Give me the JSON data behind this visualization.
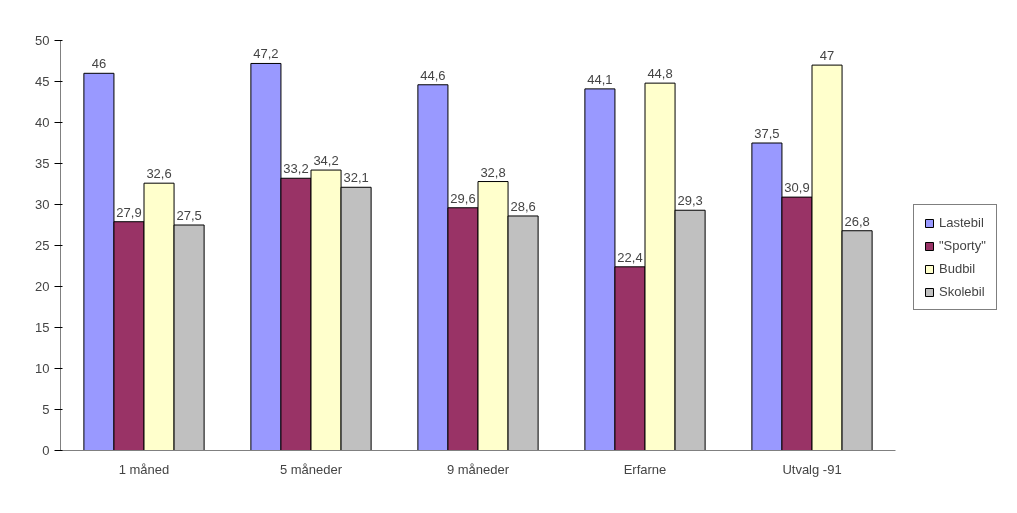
{
  "chart_data": {
    "type": "bar",
    "categories": [
      "1 måned",
      "5 måneder",
      "9 måneder",
      "Erfarne",
      "Utvalg -91"
    ],
    "series": [
      {
        "name": "Lastebil",
        "color": "#9999ff",
        "values": [
          46,
          47.2,
          44.6,
          44.1,
          37.5
        ],
        "value_labels": [
          "46",
          "47,2",
          "44,6",
          "44,1",
          "37,5"
        ]
      },
      {
        "name": "\"Sporty\"",
        "color": "#993366",
        "values": [
          27.9,
          33.2,
          29.6,
          22.4,
          30.9
        ],
        "value_labels": [
          "27,9",
          "33,2",
          "29,6",
          "22,4",
          "30,9"
        ]
      },
      {
        "name": "Budbil",
        "color": "#ffffcc",
        "values": [
          32.6,
          34.2,
          32.8,
          44.8,
          47
        ],
        "value_labels": [
          "32,6",
          "34,2",
          "32,8",
          "44,8",
          "47"
        ]
      },
      {
        "name": "Skolebil",
        "color": "#c0c0c0",
        "values": [
          27.5,
          32.1,
          28.6,
          29.3,
          26.8
        ],
        "value_labels": [
          "27,5",
          "32,1",
          "28,6",
          "29,3",
          "26,8"
        ]
      }
    ],
    "ylim": [
      0,
      50
    ],
    "yticks": [
      0,
      5,
      10,
      15,
      20,
      25,
      30,
      35,
      40,
      45,
      50
    ],
    "legend": "right",
    "grid": false
  }
}
